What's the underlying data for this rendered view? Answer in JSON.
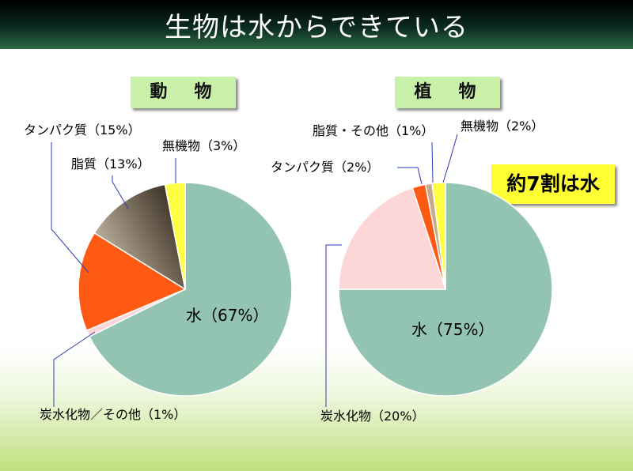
{
  "slide": {
    "title": "生物は水からできている"
  },
  "callout": "約7割は水",
  "colors": {
    "water": "#93c4b1",
    "carb": "#fdd7d7",
    "protein": "#ff5a14",
    "fat_light": "#c2b8a3",
    "fat_dark": "#231b12",
    "mineral": "#ffff44",
    "fat_other_plant": "#c9a98c",
    "leader_line": "#2a3bb5"
  },
  "chart_data": [
    {
      "type": "pie",
      "title": "動　物",
      "slices": [
        {
          "label": "水（67%）",
          "value": 67,
          "key": "water"
        },
        {
          "label": "炭水化物／その他（1%）",
          "value": 1,
          "key": "carb"
        },
        {
          "label": "タンパク質（15%）",
          "value": 15,
          "key": "protein"
        },
        {
          "label": "脂質（13%）",
          "value": 13,
          "key": "fat"
        },
        {
          "label": "無機物（3%）",
          "value": 3,
          "key": "mineral"
        }
      ]
    },
    {
      "type": "pie",
      "title": "植　物",
      "slices": [
        {
          "label": "水（75%）",
          "value": 75,
          "key": "water"
        },
        {
          "label": "炭水化物（20%）",
          "value": 20,
          "key": "carb"
        },
        {
          "label": "タンパク質（2%）",
          "value": 2,
          "key": "protein"
        },
        {
          "label": "脂質・その他（1%）",
          "value": 1,
          "key": "fat_other_plant"
        },
        {
          "label": "無機物（2%）",
          "value": 2,
          "key": "mineral"
        }
      ]
    }
  ]
}
